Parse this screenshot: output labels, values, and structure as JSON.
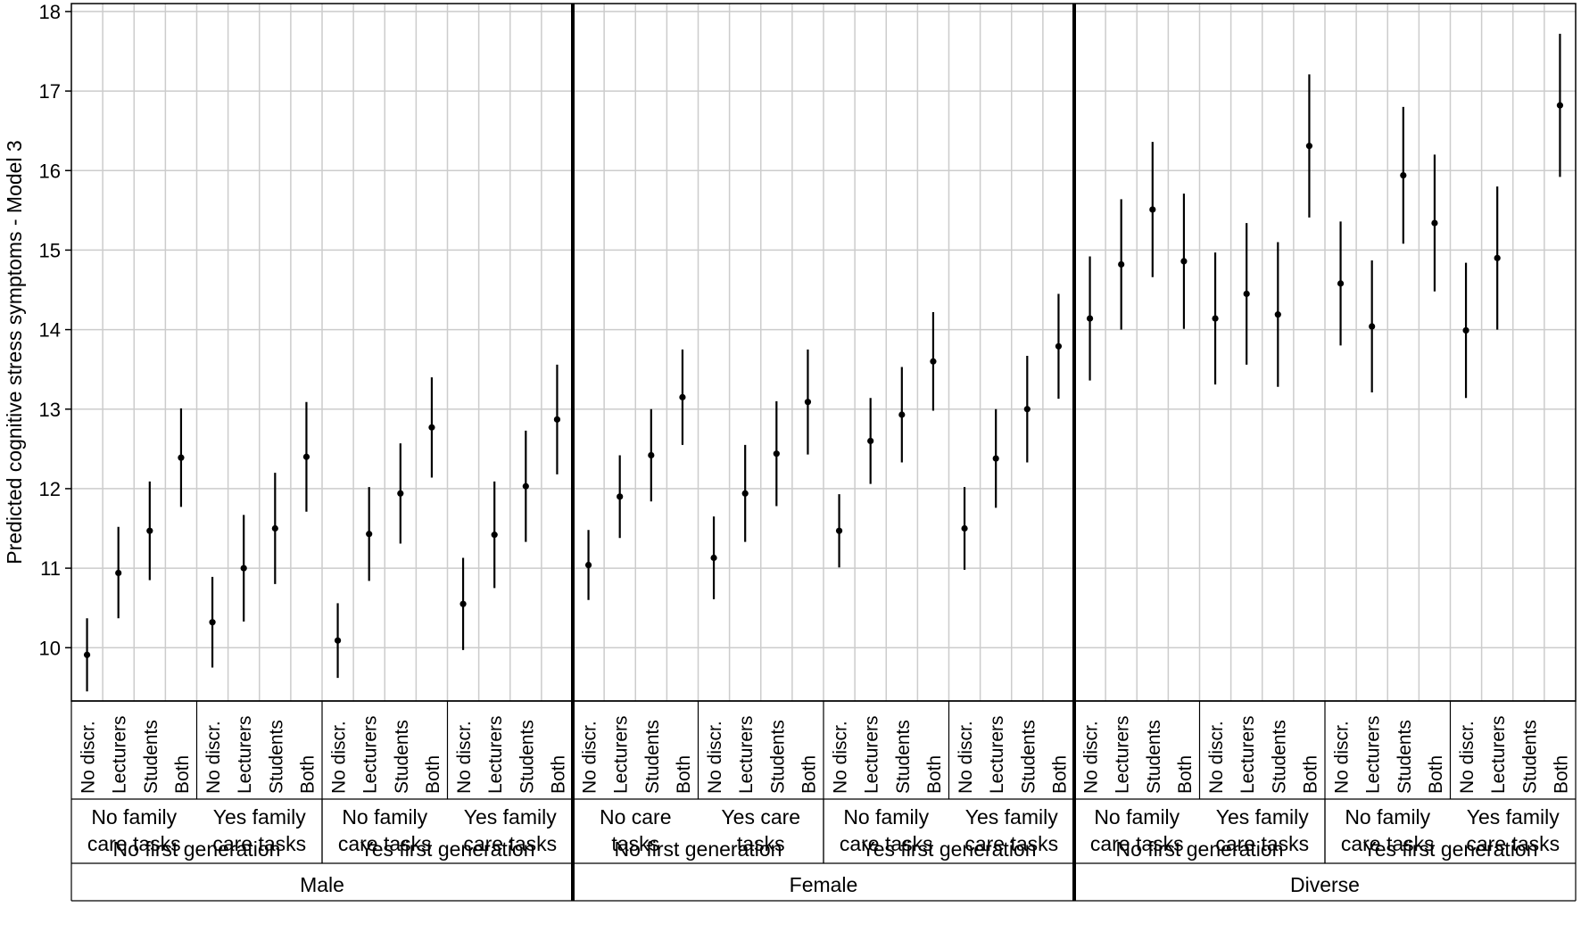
{
  "chart_data": {
    "type": "scatter",
    "style": "point-with-error-bars",
    "ylabel": "Predicted cognitive stress symptoms - Model 3",
    "xlabel": "",
    "title": "",
    "ylim": [
      9.33,
      18.1
    ],
    "yticks": [
      10,
      11,
      12,
      13,
      14,
      15,
      16,
      17,
      18
    ],
    "grid": true,
    "legend": "none",
    "colors": {
      "points": "#000000",
      "grid": "#cccccc",
      "frame": "#000000"
    },
    "facets": [
      {
        "label": "Male",
        "generations": [
          {
            "label": "No first generation",
            "care_groups": [
              {
                "label": "No family care tasks",
                "label_lines": [
                  "No family",
                  "care tasks"
                ],
                "points": [
                  {
                    "x": "No discr.",
                    "y": 9.91,
                    "ci": [
                      9.45,
                      10.37
                    ]
                  },
                  {
                    "x": "Lecturers",
                    "y": 10.94,
                    "ci": [
                      10.37,
                      11.52
                    ]
                  },
                  {
                    "x": "Students",
                    "y": 11.47,
                    "ci": [
                      10.85,
                      12.09
                    ]
                  },
                  {
                    "x": "Both",
                    "y": 12.39,
                    "ci": [
                      11.77,
                      13.01
                    ]
                  }
                ]
              },
              {
                "label": "Yes family care tasks",
                "label_lines": [
                  "Yes family",
                  "care tasks"
                ],
                "points": [
                  {
                    "x": "No discr.",
                    "y": 10.32,
                    "ci": [
                      9.75,
                      10.89
                    ]
                  },
                  {
                    "x": "Lecturers",
                    "y": 11.0,
                    "ci": [
                      10.33,
                      11.67
                    ]
                  },
                  {
                    "x": "Students",
                    "y": 11.5,
                    "ci": [
                      10.8,
                      12.2
                    ]
                  },
                  {
                    "x": "Both",
                    "y": 12.4,
                    "ci": [
                      11.71,
                      13.09
                    ]
                  }
                ]
              }
            ]
          },
          {
            "label": "Yes first generation",
            "care_groups": [
              {
                "label": "No family care tasks",
                "label_lines": [
                  "No family",
                  "care tasks"
                ],
                "points": [
                  {
                    "x": "No discr.",
                    "y": 10.09,
                    "ci": [
                      9.62,
                      10.56
                    ]
                  },
                  {
                    "x": "Lecturers",
                    "y": 11.43,
                    "ci": [
                      10.84,
                      12.02
                    ]
                  },
                  {
                    "x": "Students",
                    "y": 11.94,
                    "ci": [
                      11.31,
                      12.57
                    ]
                  },
                  {
                    "x": "Both",
                    "y": 12.77,
                    "ci": [
                      12.14,
                      13.4
                    ]
                  }
                ]
              },
              {
                "label": "Yes family care tasks",
                "label_lines": [
                  "Yes family",
                  "care tasks"
                ],
                "points": [
                  {
                    "x": "No discr.",
                    "y": 10.55,
                    "ci": [
                      9.97,
                      11.13
                    ]
                  },
                  {
                    "x": "Lecturers",
                    "y": 11.42,
                    "ci": [
                      10.75,
                      12.09
                    ]
                  },
                  {
                    "x": "Students",
                    "y": 12.03,
                    "ci": [
                      11.33,
                      12.73
                    ]
                  },
                  {
                    "x": "Both",
                    "y": 12.87,
                    "ci": [
                      12.18,
                      13.56
                    ]
                  }
                ]
              }
            ]
          }
        ]
      },
      {
        "label": "Female",
        "generations": [
          {
            "label": "No first generation",
            "care_groups": [
              {
                "label": "No care tasks",
                "label_lines": [
                  "No care",
                  "tasks"
                ],
                "points": [
                  {
                    "x": "No discr.",
                    "y": 11.04,
                    "ci": [
                      10.6,
                      11.48
                    ]
                  },
                  {
                    "x": "Lecturers",
                    "y": 11.9,
                    "ci": [
                      11.38,
                      12.42
                    ]
                  },
                  {
                    "x": "Students",
                    "y": 12.42,
                    "ci": [
                      11.84,
                      13.0
                    ]
                  },
                  {
                    "x": "Both",
                    "y": 13.15,
                    "ci": [
                      12.55,
                      13.75
                    ]
                  }
                ]
              },
              {
                "label": "Yes care tasks",
                "label_lines": [
                  "Yes care",
                  "tasks"
                ],
                "points": [
                  {
                    "x": "No discr.",
                    "y": 11.13,
                    "ci": [
                      10.61,
                      11.65
                    ]
                  },
                  {
                    "x": "Lecturers",
                    "y": 11.94,
                    "ci": [
                      11.33,
                      12.55
                    ]
                  },
                  {
                    "x": "Students",
                    "y": 12.44,
                    "ci": [
                      11.78,
                      13.1
                    ]
                  },
                  {
                    "x": "Both",
                    "y": 13.09,
                    "ci": [
                      12.43,
                      13.75
                    ]
                  }
                ]
              }
            ]
          },
          {
            "label": "Yes first generation",
            "care_groups": [
              {
                "label": "No family care tasks",
                "label_lines": [
                  "No family",
                  "care tasks"
                ],
                "points": [
                  {
                    "x": "No discr.",
                    "y": 11.47,
                    "ci": [
                      11.01,
                      11.93
                    ]
                  },
                  {
                    "x": "Lecturers",
                    "y": 12.6,
                    "ci": [
                      12.06,
                      13.14
                    ]
                  },
                  {
                    "x": "Students",
                    "y": 12.93,
                    "ci": [
                      12.33,
                      13.53
                    ]
                  },
                  {
                    "x": "Both",
                    "y": 13.6,
                    "ci": [
                      12.98,
                      14.22
                    ]
                  }
                ]
              },
              {
                "label": "Yes family care tasks",
                "label_lines": [
                  "Yes family",
                  "care tasks"
                ],
                "points": [
                  {
                    "x": "No discr.",
                    "y": 11.5,
                    "ci": [
                      10.98,
                      12.02
                    ]
                  },
                  {
                    "x": "Lecturers",
                    "y": 12.38,
                    "ci": [
                      11.76,
                      13.0
                    ]
                  },
                  {
                    "x": "Students",
                    "y": 13.0,
                    "ci": [
                      12.33,
                      13.67
                    ]
                  },
                  {
                    "x": "Both",
                    "y": 13.79,
                    "ci": [
                      13.13,
                      14.45
                    ]
                  }
                ]
              }
            ]
          }
        ]
      },
      {
        "label": "Diverse",
        "generations": [
          {
            "label": "No first generation",
            "care_groups": [
              {
                "label": "No family care tasks",
                "label_lines": [
                  "No family",
                  "care tasks"
                ],
                "points": [
                  {
                    "x": "No discr.",
                    "y": 14.14,
                    "ci": [
                      13.36,
                      14.92
                    ]
                  },
                  {
                    "x": "Lecturers",
                    "y": 14.82,
                    "ci": [
                      14.0,
                      15.64
                    ]
                  },
                  {
                    "x": "Students",
                    "y": 15.51,
                    "ci": [
                      14.66,
                      16.36
                    ]
                  },
                  {
                    "x": "Both",
                    "y": 14.86,
                    "ci": [
                      14.01,
                      15.71
                    ]
                  }
                ]
              },
              {
                "label": "Yes family care tasks",
                "label_lines": [
                  "Yes family",
                  "care tasks"
                ],
                "points": [
                  {
                    "x": "No discr.",
                    "y": 14.14,
                    "ci": [
                      13.31,
                      14.97
                    ]
                  },
                  {
                    "x": "Lecturers",
                    "y": 14.45,
                    "ci": [
                      13.56,
                      15.34
                    ]
                  },
                  {
                    "x": "Students",
                    "y": 14.19,
                    "ci": [
                      13.28,
                      15.1
                    ]
                  },
                  {
                    "x": "Both",
                    "y": 16.31,
                    "ci": [
                      15.41,
                      17.21
                    ]
                  }
                ]
              }
            ]
          },
          {
            "label": "Yes first generation",
            "care_groups": [
              {
                "label": "No family care tasks",
                "label_lines": [
                  "No family",
                  "care tasks"
                ],
                "points": [
                  {
                    "x": "No discr.",
                    "y": 14.58,
                    "ci": [
                      13.8,
                      15.36
                    ]
                  },
                  {
                    "x": "Lecturers",
                    "y": 14.04,
                    "ci": [
                      13.21,
                      14.87
                    ]
                  },
                  {
                    "x": "Students",
                    "y": 15.94,
                    "ci": [
                      15.08,
                      16.8
                    ]
                  },
                  {
                    "x": "Both",
                    "y": 15.34,
                    "ci": [
                      14.48,
                      16.2
                    ]
                  }
                ]
              },
              {
                "label": "Yes family care tasks",
                "label_lines": [
                  "Yes family",
                  "care tasks"
                ],
                "points": [
                  {
                    "x": "No discr.",
                    "y": 13.99,
                    "ci": [
                      13.14,
                      14.84
                    ]
                  },
                  {
                    "x": "Lecturers",
                    "y": 14.9,
                    "ci": [
                      14.0,
                      15.8
                    ]
                  },
                  {
                    "x": "Students",
                    "y": null,
                    "ci": null
                  },
                  {
                    "x": "Both",
                    "y": 16.82,
                    "ci": [
                      15.92,
                      17.72
                    ]
                  }
                ]
              }
            ]
          }
        ]
      }
    ]
  }
}
